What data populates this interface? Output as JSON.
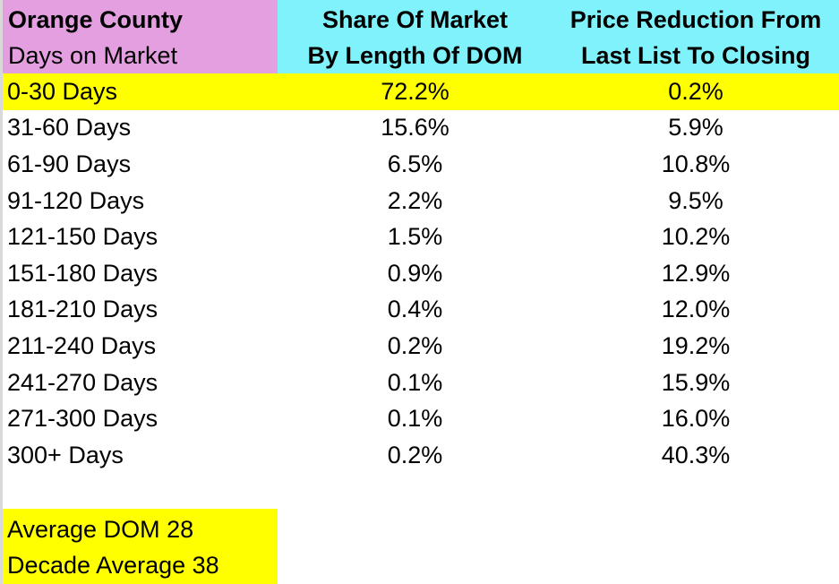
{
  "header": {
    "region": "Orange County",
    "days_label": "Days on Market",
    "share_line1": "Share Of Market",
    "share_line2": "By Length Of DOM",
    "price_line1": "Price Reduction From",
    "price_line2": "Last List To Closing"
  },
  "colors": {
    "label_header_bg": "#e39fe0",
    "data_header_bg": "#7ff2fb",
    "highlight_bg": "#ffff00"
  },
  "rows": [
    {
      "days": "0-30 Days",
      "share": "72.2%",
      "price": "0.2%"
    },
    {
      "days": "31-60 Days",
      "share": "15.6%",
      "price": "5.9%"
    },
    {
      "days": "61-90 Days",
      "share": "6.5%",
      "price": "10.8%"
    },
    {
      "days": "91-120 Days",
      "share": "2.2%",
      "price": "9.5%"
    },
    {
      "days": "121-150 Days",
      "share": "1.5%",
      "price": "10.2%"
    },
    {
      "days": "151-180 Days",
      "share": "0.9%",
      "price": "12.9%"
    },
    {
      "days": "181-210 Days",
      "share": "0.4%",
      "price": "12.0%"
    },
    {
      "days": "211-240 Days",
      "share": "0.2%",
      "price": "19.2%"
    },
    {
      "days": "241-270 Days",
      "share": "0.1%",
      "price": "15.9%"
    },
    {
      "days": "271-300 Days",
      "share": "0.1%",
      "price": "16.0%"
    },
    {
      "days": "300+ Days",
      "share": "0.2%",
      "price": "40.3%"
    }
  ],
  "footer": {
    "average_dom": "Average DOM 28",
    "decade_average": "Decade Average 38"
  }
}
